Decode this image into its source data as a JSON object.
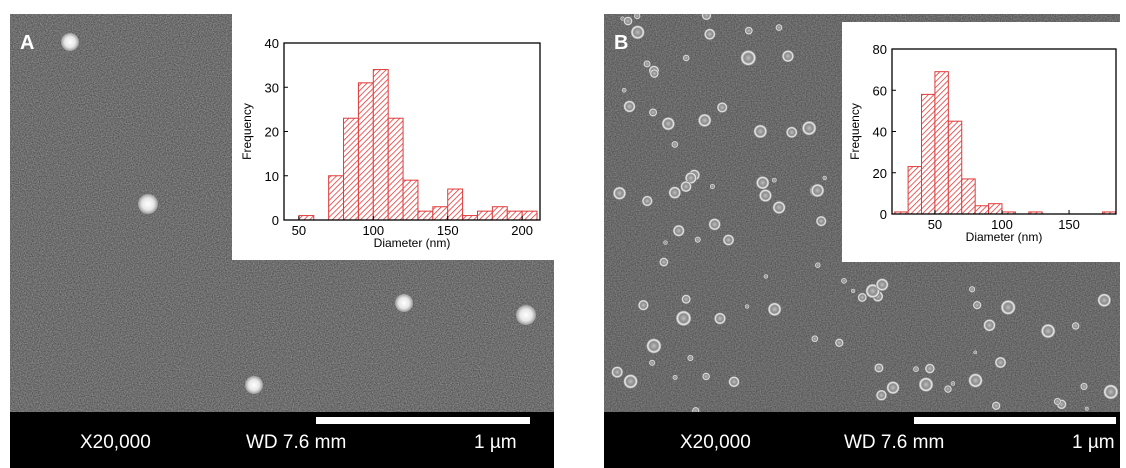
{
  "panels": [
    {
      "letter": "A",
      "magnification": "X20,000",
      "working_distance": "WD 7.6 mm",
      "scale_label": "1 µm",
      "chart_data": {
        "type": "bar",
        "xlabel": "Diameter (nm)",
        "ylabel": "Frequency",
        "xlim": [
          40,
          212
        ],
        "ylim": [
          0,
          40
        ],
        "xticks": [
          50,
          100,
          150,
          200
        ],
        "yticks": [
          0,
          10,
          20,
          30,
          40
        ],
        "bin_width": 10,
        "bars": [
          {
            "x": 55,
            "y": 1
          },
          {
            "x": 75,
            "y": 10
          },
          {
            "x": 85,
            "y": 23
          },
          {
            "x": 95,
            "y": 31
          },
          {
            "x": 105,
            "y": 34
          },
          {
            "x": 115,
            "y": 23
          },
          {
            "x": 125,
            "y": 9
          },
          {
            "x": 135,
            "y": 2
          },
          {
            "x": 145,
            "y": 3
          },
          {
            "x": 155,
            "y": 7
          },
          {
            "x": 165,
            "y": 1
          },
          {
            "x": 175,
            "y": 2
          },
          {
            "x": 185,
            "y": 3
          },
          {
            "x": 195,
            "y": 2
          },
          {
            "x": 205,
            "y": 2
          }
        ],
        "bar_color": "#e03a3a"
      }
    },
    {
      "letter": "B",
      "magnification": "X20,000",
      "working_distance": "WD 7.6 mm",
      "scale_label": "1 µm",
      "chart_data": {
        "type": "bar",
        "xlabel": "Diameter (nm)",
        "ylabel": "Frequency",
        "xlim": [
          18,
          185
        ],
        "ylim": [
          0,
          80
        ],
        "xticks": [
          50,
          100,
          150
        ],
        "yticks": [
          0,
          20,
          40,
          60,
          80
        ],
        "bin_width": 10,
        "bars": [
          {
            "x": 25,
            "y": 1
          },
          {
            "x": 35,
            "y": 23
          },
          {
            "x": 45,
            "y": 58
          },
          {
            "x": 55,
            "y": 69
          },
          {
            "x": 65,
            "y": 45
          },
          {
            "x": 75,
            "y": 17
          },
          {
            "x": 85,
            "y": 4
          },
          {
            "x": 95,
            "y": 5
          },
          {
            "x": 105,
            "y": 1
          },
          {
            "x": 125,
            "y": 1
          },
          {
            "x": 180,
            "y": 1
          }
        ],
        "bar_color": "#e03a3a"
      }
    }
  ]
}
